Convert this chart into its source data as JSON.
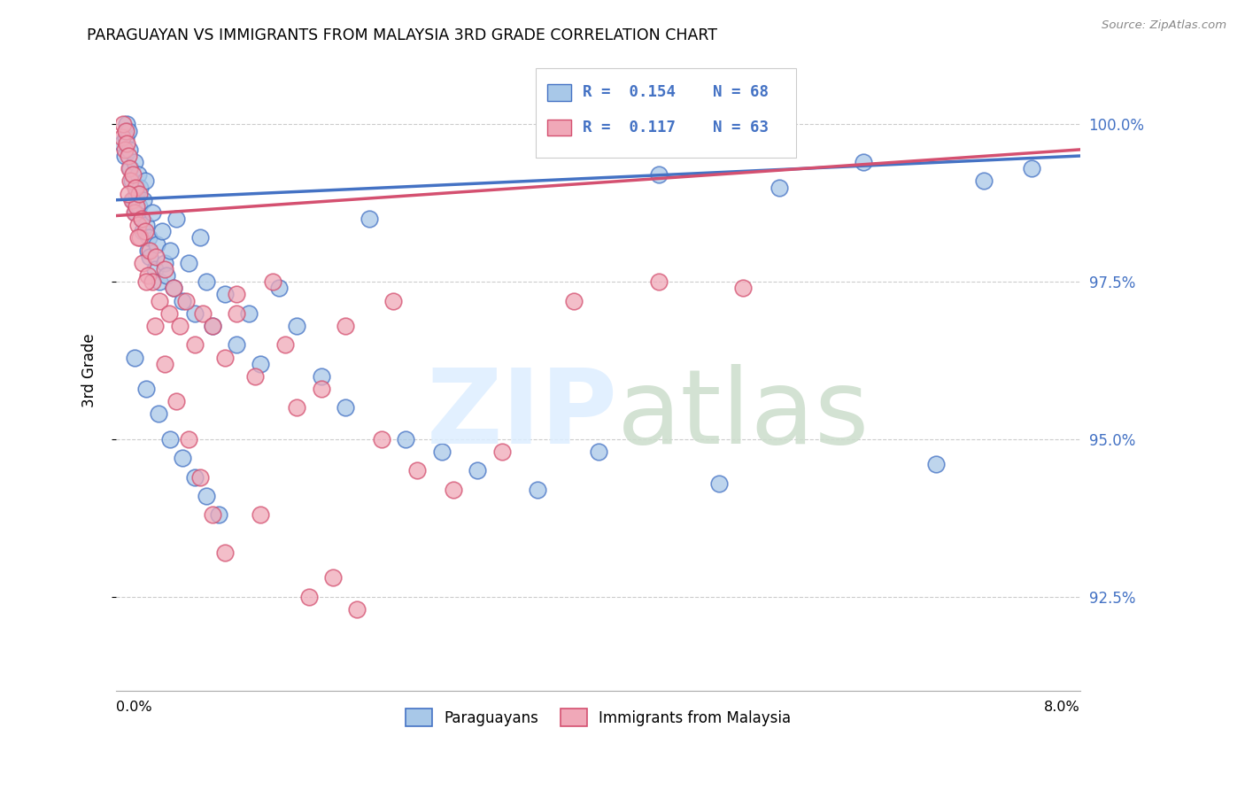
{
  "title": "PARAGUAYAN VS IMMIGRANTS FROM MALAYSIA 3RD GRADE CORRELATION CHART",
  "source": "Source: ZipAtlas.com",
  "ylabel": "3rd Grade",
  "yticks": [
    92.5,
    95.0,
    97.5,
    100.0
  ],
  "ytick_labels": [
    "92.5%",
    "95.0%",
    "97.5%",
    "100.0%"
  ],
  "xmin": 0.0,
  "xmax": 8.0,
  "ymin": 91.0,
  "ymax": 101.2,
  "legend_label1": "Paraguayans",
  "legend_label2": "Immigrants from Malaysia",
  "color_blue": "#A8C8E8",
  "color_pink": "#F0A8B8",
  "color_blue_line": "#4472C4",
  "color_pink_line": "#D45070",
  "blue_x": [
    0.05,
    0.07,
    0.08,
    0.09,
    0.1,
    0.11,
    0.12,
    0.13,
    0.14,
    0.15,
    0.16,
    0.17,
    0.18,
    0.19,
    0.2,
    0.21,
    0.22,
    0.23,
    0.24,
    0.25,
    0.26,
    0.27,
    0.28,
    0.3,
    0.32,
    0.34,
    0.36,
    0.38,
    0.4,
    0.42,
    0.45,
    0.48,
    0.5,
    0.55,
    0.6,
    0.65,
    0.7,
    0.75,
    0.8,
    0.9,
    1.0,
    1.1,
    1.2,
    1.35,
    1.5,
    1.7,
    1.9,
    2.1,
    2.4,
    2.7,
    3.0,
    3.5,
    4.0,
    4.5,
    5.0,
    5.5,
    6.2,
    6.8,
    7.2,
    7.6,
    0.15,
    0.25,
    0.35,
    0.45,
    0.55,
    0.65,
    0.75,
    0.85
  ],
  "blue_y": [
    99.7,
    99.5,
    99.8,
    100.0,
    99.9,
    99.6,
    99.3,
    99.1,
    98.8,
    99.4,
    98.6,
    98.9,
    99.2,
    98.7,
    99.0,
    98.5,
    98.3,
    98.8,
    99.1,
    98.4,
    98.0,
    98.2,
    97.9,
    98.6,
    97.7,
    98.1,
    97.5,
    98.3,
    97.8,
    97.6,
    98.0,
    97.4,
    98.5,
    97.2,
    97.8,
    97.0,
    98.2,
    97.5,
    96.8,
    97.3,
    96.5,
    97.0,
    96.2,
    97.4,
    96.8,
    96.0,
    95.5,
    98.5,
    95.0,
    94.8,
    94.5,
    94.2,
    94.8,
    99.2,
    94.3,
    99.0,
    99.4,
    94.6,
    99.1,
    99.3,
    96.3,
    95.8,
    95.4,
    95.0,
    94.7,
    94.4,
    94.1,
    93.8
  ],
  "pink_x": [
    0.05,
    0.06,
    0.07,
    0.08,
    0.09,
    0.1,
    0.11,
    0.12,
    0.13,
    0.14,
    0.15,
    0.16,
    0.17,
    0.18,
    0.19,
    0.2,
    0.21,
    0.22,
    0.24,
    0.26,
    0.28,
    0.3,
    0.33,
    0.36,
    0.4,
    0.44,
    0.48,
    0.53,
    0.58,
    0.65,
    0.72,
    0.8,
    0.9,
    1.0,
    1.15,
    1.3,
    1.5,
    1.7,
    1.9,
    2.2,
    2.5,
    2.8,
    3.2,
    3.8,
    4.5,
    5.2,
    0.1,
    0.18,
    0.25,
    0.32,
    0.4,
    0.5,
    0.6,
    0.7,
    0.8,
    0.9,
    1.0,
    1.2,
    1.4,
    1.6,
    1.8,
    2.0,
    2.3
  ],
  "pink_y": [
    99.8,
    100.0,
    99.6,
    99.9,
    99.7,
    99.5,
    99.3,
    99.1,
    98.8,
    99.2,
    98.6,
    99.0,
    98.7,
    98.4,
    98.9,
    98.2,
    98.5,
    97.8,
    98.3,
    97.6,
    98.0,
    97.5,
    97.9,
    97.2,
    97.7,
    97.0,
    97.4,
    96.8,
    97.2,
    96.5,
    97.0,
    96.8,
    96.3,
    97.3,
    96.0,
    97.5,
    95.5,
    95.8,
    96.8,
    95.0,
    94.5,
    94.2,
    94.8,
    97.2,
    97.5,
    97.4,
    98.9,
    98.2,
    97.5,
    96.8,
    96.2,
    95.6,
    95.0,
    94.4,
    93.8,
    93.2,
    97.0,
    93.8,
    96.5,
    92.5,
    92.8,
    92.3,
    97.2
  ]
}
